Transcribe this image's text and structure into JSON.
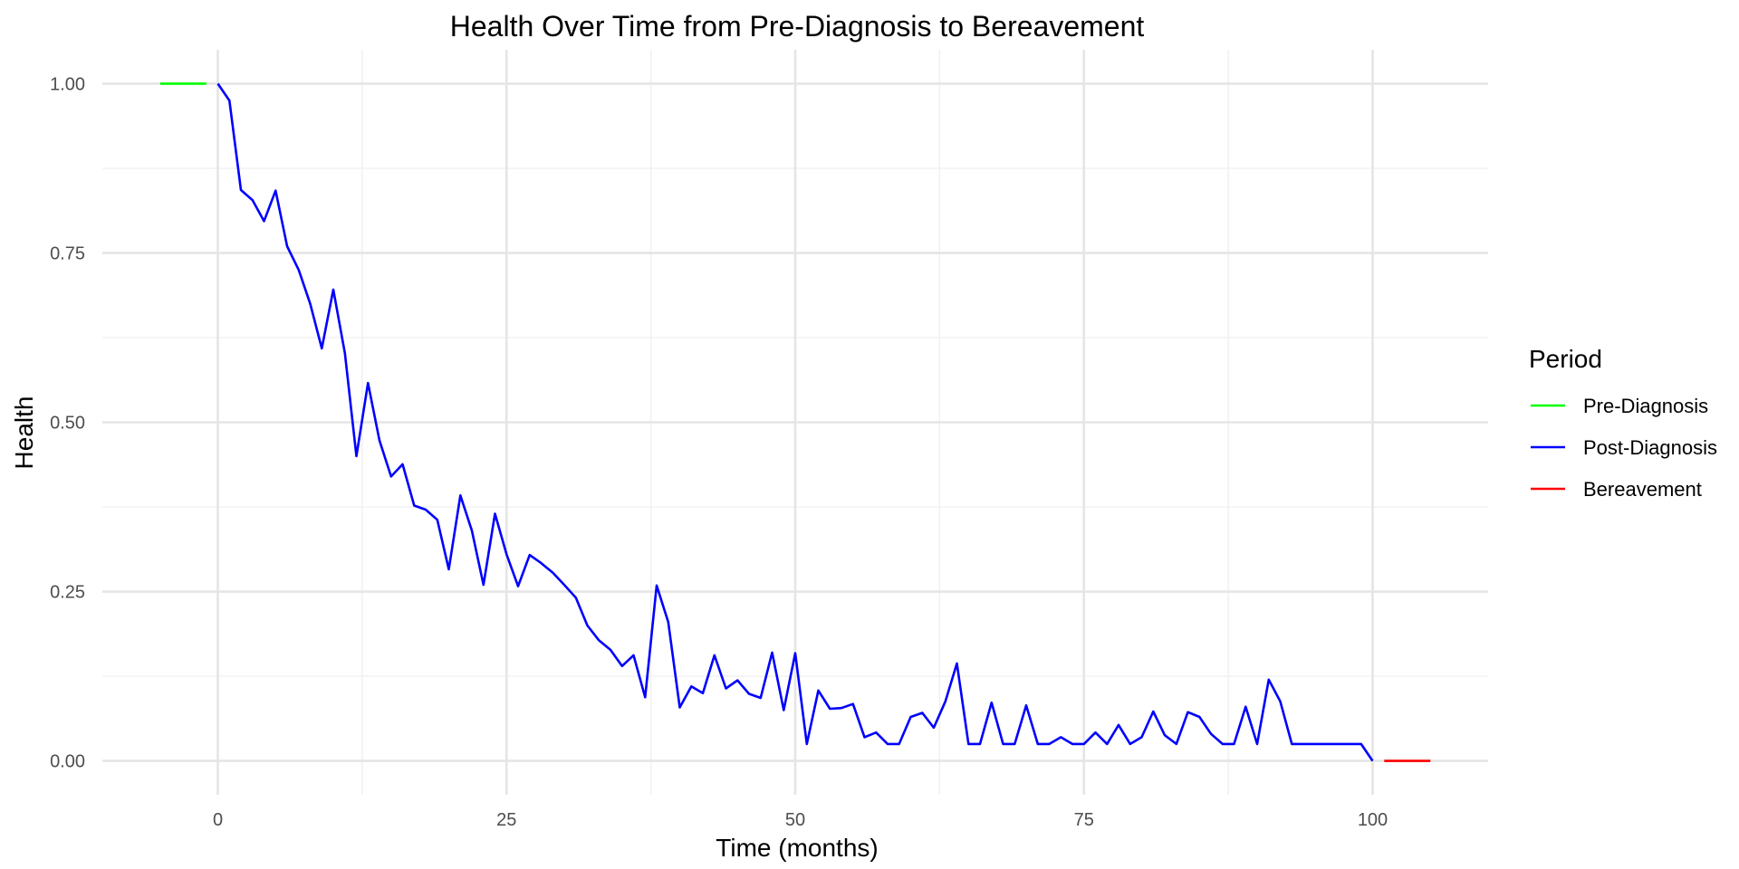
{
  "chart_data": {
    "type": "line",
    "title": "Health Over Time from Pre-Diagnosis to Bereavement",
    "xlabel": "Time (months)",
    "ylabel": "Health",
    "xlim": [
      -10,
      110
    ],
    "ylim": [
      -0.05,
      1.05
    ],
    "x_ticks": [
      0,
      25,
      50,
      75,
      100
    ],
    "x_tick_labels": [
      "0",
      "25",
      "50",
      "75",
      "100"
    ],
    "y_ticks": [
      0,
      0.25,
      0.5,
      0.75,
      1.0
    ],
    "y_tick_labels": [
      "0.00",
      "0.25",
      "0.50",
      "0.75",
      "1.00"
    ],
    "grid": true,
    "legend": {
      "title": "Period",
      "position": "right",
      "entries": [
        "Pre-Diagnosis",
        "Post-Diagnosis",
        "Bereavement"
      ]
    },
    "series": [
      {
        "name": "Pre-Diagnosis",
        "color": "#00ff00",
        "x": [
          -5,
          -4,
          -3,
          -2,
          -1
        ],
        "y": [
          1.0,
          1.0,
          1.0,
          1.0,
          1.0
        ]
      },
      {
        "name": "Post-Diagnosis",
        "color": "#0000ff",
        "x": [
          0,
          1,
          2,
          3,
          4,
          5,
          6,
          7,
          8,
          9,
          10,
          11,
          12,
          13,
          14,
          15,
          16,
          17,
          18,
          19,
          20,
          21,
          22,
          23,
          24,
          25,
          26,
          27,
          28,
          29,
          30,
          31,
          32,
          33,
          34,
          35,
          36,
          37,
          38,
          39,
          40,
          41,
          42,
          43,
          44,
          45,
          46,
          47,
          48,
          49,
          50,
          51,
          52,
          53,
          54,
          55,
          56,
          57,
          58,
          59,
          60,
          61,
          62,
          63,
          64,
          65,
          66,
          67,
          68,
          69,
          70,
          71,
          72,
          73,
          74,
          75,
          76,
          77,
          78,
          79,
          80,
          81,
          82,
          83,
          84,
          85,
          86,
          87,
          88,
          89,
          90,
          91,
          92,
          93,
          94,
          95,
          96,
          97,
          98,
          99,
          100
        ],
        "y": [
          1.0,
          0.975,
          0.843,
          0.828,
          0.797,
          0.842,
          0.76,
          0.725,
          0.675,
          0.609,
          0.696,
          0.602,
          0.45,
          0.558,
          0.473,
          0.42,
          0.438,
          0.377,
          0.371,
          0.356,
          0.283,
          0.392,
          0.34,
          0.26,
          0.365,
          0.305,
          0.258,
          0.304,
          0.292,
          0.278,
          0.26,
          0.241,
          0.2,
          0.178,
          0.164,
          0.14,
          0.156,
          0.094,
          0.259,
          0.205,
          0.079,
          0.11,
          0.1,
          0.156,
          0.107,
          0.119,
          0.099,
          0.093,
          0.16,
          0.075,
          0.159,
          0.025,
          0.104,
          0.077,
          0.078,
          0.084,
          0.035,
          0.042,
          0.025,
          0.025,
          0.065,
          0.071,
          0.049,
          0.088,
          0.144,
          0.025,
          0.025,
          0.086,
          0.025,
          0.025,
          0.082,
          0.025,
          0.025,
          0.035,
          0.025,
          0.025,
          0.042,
          0.025,
          0.053,
          0.025,
          0.035,
          0.073,
          0.038,
          0.025,
          0.072,
          0.065,
          0.04,
          0.025,
          0.025,
          0.08,
          0.025,
          0.12,
          0.088,
          0.025,
          0.025,
          0.025,
          0.025,
          0.025,
          0.025,
          0.025,
          0.0
        ]
      },
      {
        "name": "Bereavement",
        "color": "#ff0000",
        "x": [
          101,
          102,
          103,
          104,
          105
        ],
        "y": [
          0.0,
          0.0,
          0.0,
          0.0,
          0.0
        ]
      }
    ]
  }
}
